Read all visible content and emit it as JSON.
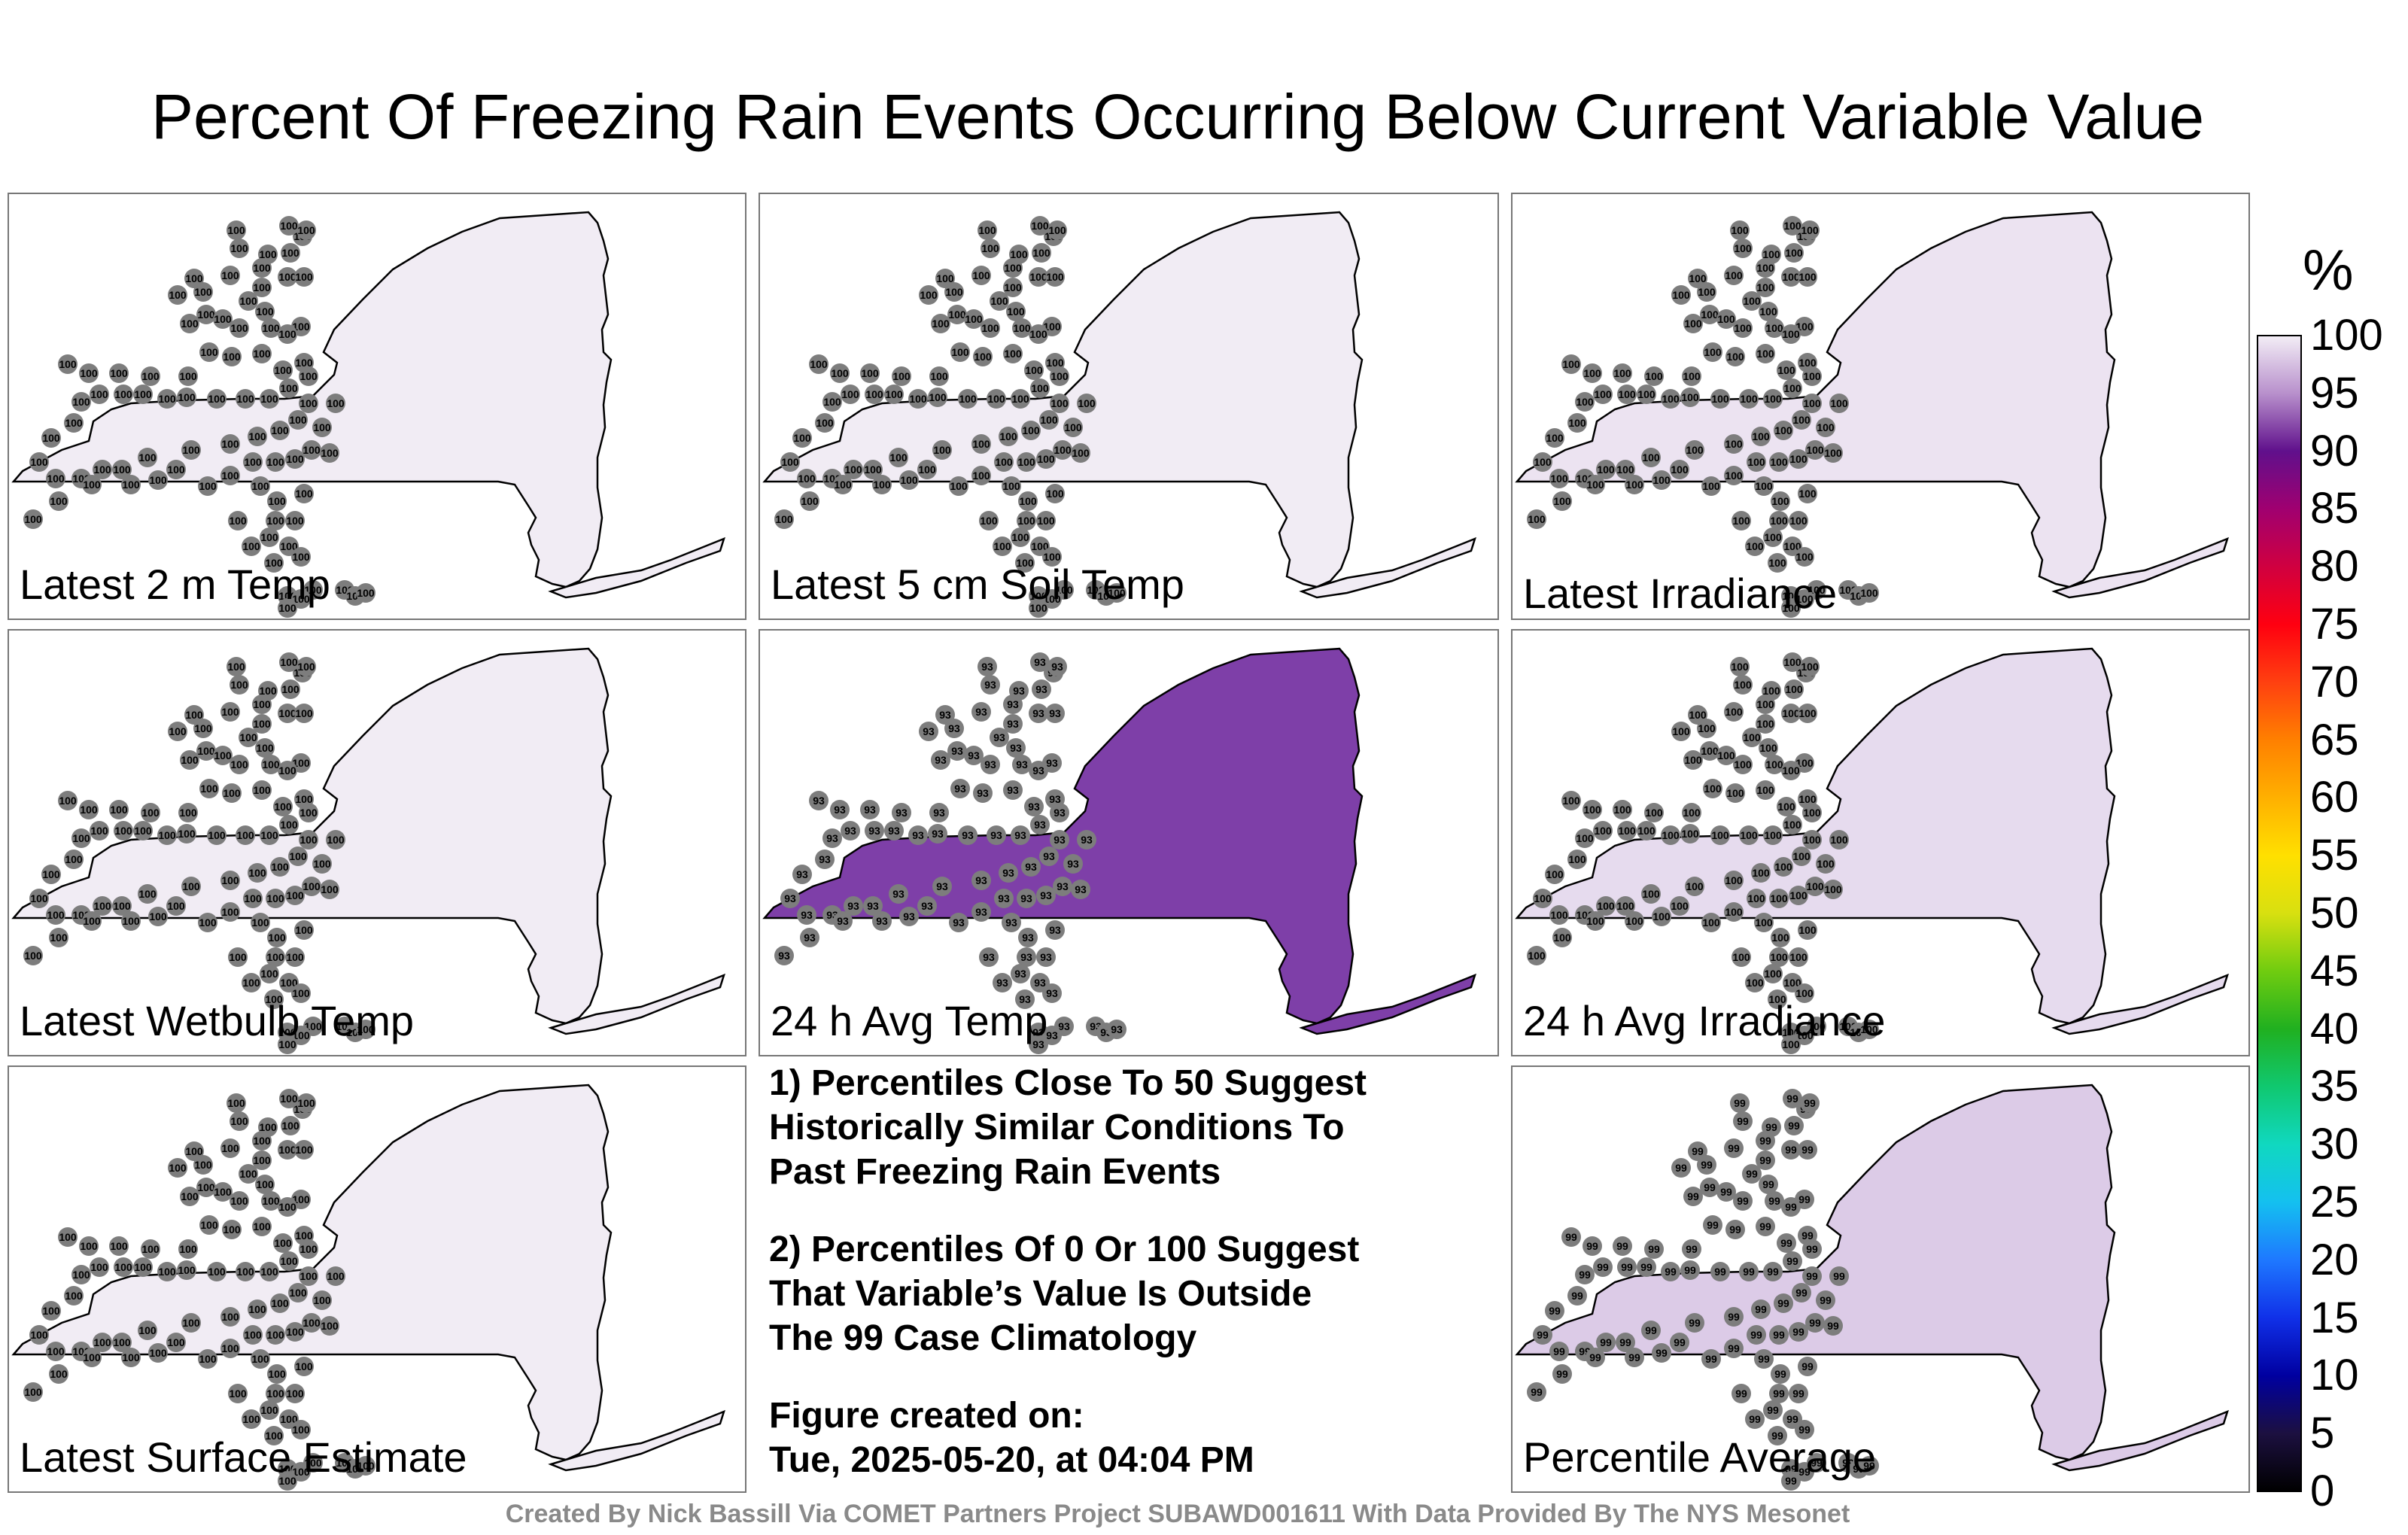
{
  "title": "Percent Of Freezing Rain Events Occurring Below Current Variable Value",
  "colorbar": {
    "title": "%",
    "ticks": [
      "100",
      "95",
      "90",
      "85",
      "80",
      "75",
      "70",
      "65",
      "60",
      "55",
      "50",
      "45",
      "40",
      "35",
      "30",
      "25",
      "20",
      "15",
      "10",
      "5",
      "0"
    ]
  },
  "panels": [
    {
      "id": "p1",
      "label": "Latest 2 m Temp",
      "fill": "#f1ecf4",
      "station_value": "100"
    },
    {
      "id": "p2",
      "label": "Latest 5 cm Soil Temp",
      "fill": "#f1ecf4",
      "station_value": "100"
    },
    {
      "id": "p3",
      "label": "Latest Irradiance",
      "fill": "#ece3f1",
      "station_value": "100"
    },
    {
      "id": "p4",
      "label": "Latest Wetbulb Temp",
      "fill": "#f1ecf4",
      "station_value": "100"
    },
    {
      "id": "p5",
      "label": "24 h Avg Temp",
      "fill": "#7e3fa8",
      "station_value": "93"
    },
    {
      "id": "p6",
      "label": "24 h Avg Irradiance",
      "fill": "#e6dbee",
      "station_value": "100"
    },
    {
      "id": "p7",
      "label": "Latest Surface Estimate",
      "fill": "#f1ecf4",
      "station_value": "100"
    },
    {
      "id": "p9",
      "label": "Percentile Average",
      "fill": "#dccbe7",
      "station_value": "99"
    }
  ],
  "notes": [
    "1) Percentiles Close To 50 Suggest",
    "Historically Similar Conditions To",
    "Past Freezing Rain Events",
    "2) Percentiles Of 0 Or 100 Suggest",
    "That Variable’s Value Is Outside",
    "The 99 Case Climatology",
    "Figure created on:",
    "Tue, 2025-05-20, at 04:04 PM"
  ],
  "footer": "Created By Nick Bassill Via COMET Partners Project SUBAWD001611 With Data Provided By The NYS Mesonet"
}
